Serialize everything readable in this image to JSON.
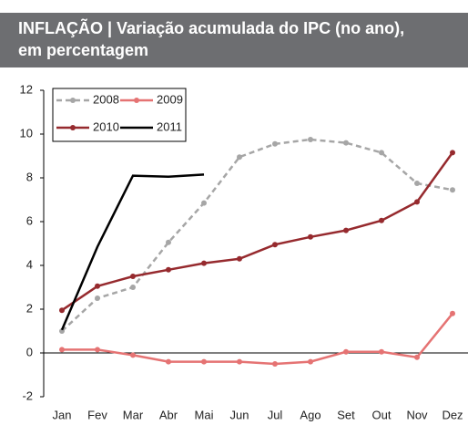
{
  "chart_data": {
    "type": "line",
    "title": "INFLAÇÃO | Variação acumulada do IPC (no ano), em percentagem",
    "categories": [
      "Jan",
      "Fev",
      "Mar",
      "Abr",
      "Mai",
      "Jun",
      "Jul",
      "Ago",
      "Set",
      "Out",
      "Nov",
      "Dez"
    ],
    "series": [
      {
        "name": "2008",
        "color": "#a6a6a6",
        "dashed": true,
        "marker": true,
        "values": [
          1.0,
          2.5,
          3.0,
          5.05,
          6.85,
          8.95,
          9.55,
          9.75,
          9.6,
          9.15,
          7.75,
          7.45
        ]
      },
      {
        "name": "2009",
        "color": "#e57373",
        "dashed": false,
        "marker": true,
        "values": [
          0.15,
          0.15,
          -0.1,
          -0.4,
          -0.4,
          -0.4,
          -0.5,
          -0.4,
          0.05,
          0.05,
          -0.2,
          1.8
        ]
      },
      {
        "name": "2010",
        "color": "#962a2e",
        "dashed": false,
        "marker": true,
        "values": [
          1.95,
          3.05,
          3.5,
          3.8,
          4.1,
          4.3,
          4.95,
          5.3,
          5.6,
          6.05,
          6.9,
          9.15
        ]
      },
      {
        "name": "2011",
        "color": "#000000",
        "dashed": false,
        "marker": false,
        "values": [
          1.05,
          4.85,
          8.1,
          8.05,
          8.15,
          null,
          null,
          null,
          null,
          null,
          null,
          null
        ]
      }
    ],
    "ylim": [
      -2,
      12
    ],
    "yticks": [
      -2,
      0,
      2,
      4,
      6,
      8,
      10,
      12
    ],
    "grid": false
  }
}
